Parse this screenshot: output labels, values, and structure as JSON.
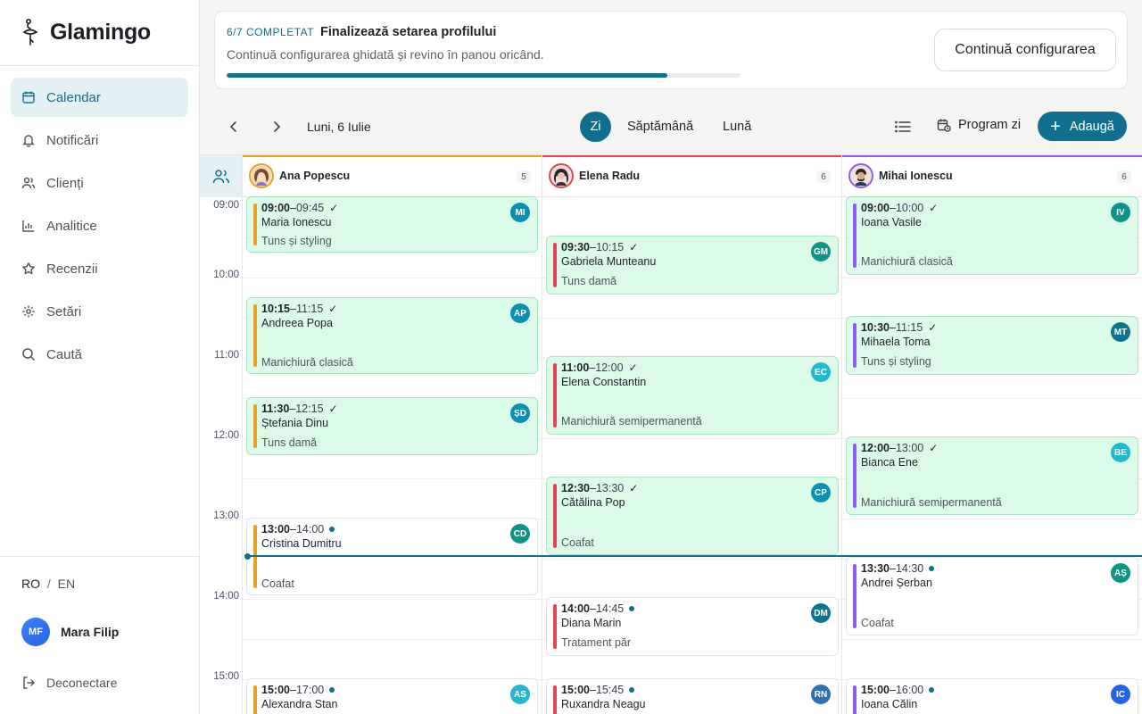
{
  "app": {
    "name": "Glamingo"
  },
  "sidebar": {
    "items": [
      {
        "label": "Calendar"
      },
      {
        "label": "Notificări"
      },
      {
        "label": "Clienți"
      },
      {
        "label": "Analitice"
      },
      {
        "label": "Recenzii"
      },
      {
        "label": "Setări"
      },
      {
        "label": "Caută"
      }
    ],
    "lang_ro": "RO",
    "lang_sep": "/",
    "lang_en": "EN",
    "user": {
      "initials": "MF",
      "name": "Mara Filip"
    },
    "logout": "Deconectare"
  },
  "banner": {
    "count": "6/7 COMPLETAT",
    "title": "Finalizează setarea profilului",
    "subtitle": "Continuă configurarea ghidată și revino în panou oricând.",
    "progress": 0.857,
    "button": "Continuă configurarea"
  },
  "toolbar": {
    "date": "Luni, 6 Iulie",
    "views": [
      "Zi",
      "Săptămână",
      "Lună"
    ],
    "program": "Program zi",
    "add": "Adaugă"
  },
  "times": [
    "09:00",
    "10:00",
    "11:00",
    "12:00",
    "13:00",
    "14:00",
    "15:00"
  ],
  "colors": {
    "accent": "#0f6f8e",
    "ana": "#e5a324",
    "elena": "#e0455a",
    "mihai": "#8b5cf6"
  },
  "staff": [
    {
      "name": "Ana Popescu",
      "count": "5"
    },
    {
      "name": "Elena Radu",
      "count": "6"
    },
    {
      "name": "Mihai Ionescu",
      "count": "6"
    }
  ],
  "appointments": [
    {
      "start": "09:00",
      "end": "09:45",
      "client": "Maria Ionescu",
      "service": "Tuns și styling",
      "initials": "MI"
    },
    {
      "start": "10:15",
      "end": "11:15",
      "client": "Andreea Popa",
      "service": "Manichiură clasică",
      "initials": "AP"
    },
    {
      "start": "11:30",
      "end": "12:15",
      "client": "Ștefania Dinu",
      "service": "Tuns damă",
      "initials": "ȘD"
    },
    {
      "start": "13:00",
      "end": "14:00",
      "client": "Cristina Dumitru",
      "service": "Coafat",
      "initials": "CD"
    },
    {
      "start": "15:00",
      "end": "17:00",
      "client": "Alexandra Stan",
      "service": "",
      "initials": "AS"
    },
    {
      "start": "09:30",
      "end": "10:15",
      "client": "Gabriela Munteanu",
      "service": "Tuns damă",
      "initials": "GM"
    },
    {
      "start": "11:00",
      "end": "12:00",
      "client": "Elena Constantin",
      "service": "Manichiură semipermanentă",
      "initials": "EC"
    },
    {
      "start": "12:30",
      "end": "13:30",
      "client": "Cătălina Pop",
      "service": "Coafat",
      "initials": "CP"
    },
    {
      "start": "14:00",
      "end": "14:45",
      "client": "Diana Marin",
      "service": "Tratament păr",
      "initials": "DM"
    },
    {
      "start": "15:00",
      "end": "15:45",
      "client": "Ruxandra Neagu",
      "service": "",
      "initials": "RN"
    },
    {
      "start": "09:00",
      "end": "10:00",
      "client": "Ioana Vasile",
      "service": "Manichiură clasică",
      "initials": "IV"
    },
    {
      "start": "10:30",
      "end": "11:15",
      "client": "Mihaela Toma",
      "service": "Tuns și styling",
      "initials": "MT"
    },
    {
      "start": "12:00",
      "end": "13:00",
      "client": "Bianca Ene",
      "service": "Manichiură semipermanentă",
      "initials": "BE"
    },
    {
      "start": "13:30",
      "end": "14:30",
      "client": "Andrei Șerban",
      "service": "Coafat",
      "initials": "AȘ"
    },
    {
      "start": "15:00",
      "end": "16:00",
      "client": "Ioana Călin",
      "service": "",
      "initials": "IC"
    }
  ]
}
